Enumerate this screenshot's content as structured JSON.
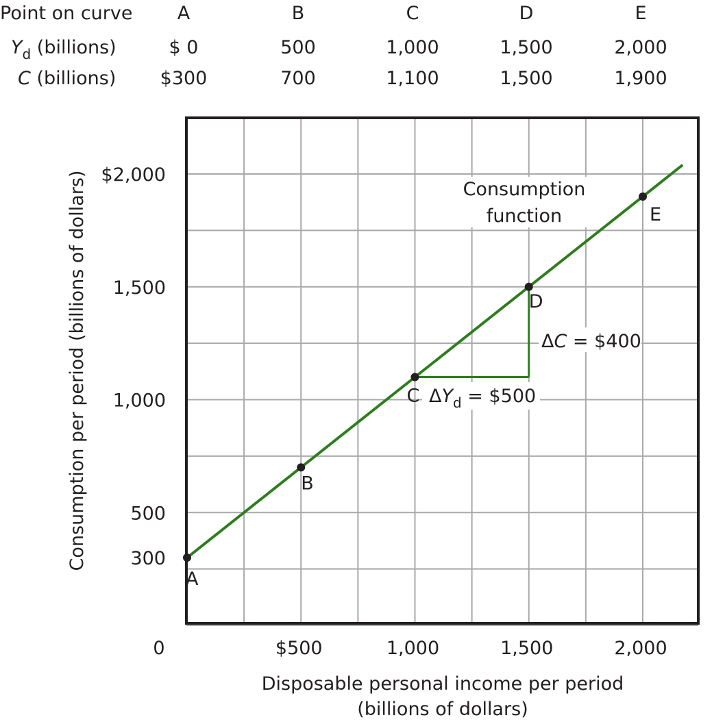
{
  "table": {
    "rows": [
      {
        "label_main": "Point on curve",
        "label_sub": "",
        "label_rest": "",
        "cells": [
          "A",
          "B",
          "C",
          "D",
          "E"
        ]
      },
      {
        "label_main": "Y",
        "label_sub": "d",
        "label_rest": " (billions)",
        "cells": [
          "$  0",
          "500",
          "1,000",
          "1,500",
          "2,000"
        ]
      },
      {
        "label_main": "C",
        "label_sub": "",
        "label_rest": " (billions)",
        "cells": [
          "$300",
          "700",
          "1,100",
          "1,500",
          "1,900"
        ]
      }
    ]
  },
  "chart_data": {
    "type": "line",
    "xlabel_line1": "Disposable personal income per period",
    "xlabel_line2": "(billions of dollars)",
    "ylabel": "Consumption per period (billions of dollars)",
    "xlim": [
      -100,
      2200
    ],
    "ylim": [
      -200,
      2200
    ],
    "x_grid": [
      0,
      250,
      500,
      750,
      1000,
      1250,
      1500,
      1750,
      2000
    ],
    "y_grid": [
      0,
      250,
      500,
      750,
      1000,
      1250,
      1500,
      1750,
      2000
    ],
    "grid": true,
    "x_ticks": [
      {
        "value": 0,
        "label": "0"
      },
      {
        "value": 500,
        "label": "$500"
      },
      {
        "value": 1000,
        "label": "1,000"
      },
      {
        "value": 1500,
        "label": "1,500"
      },
      {
        "value": 2000,
        "label": "2,000"
      }
    ],
    "y_ticks": [
      {
        "value": 300,
        "label": "300"
      },
      {
        "value": 500,
        "label": "500"
      },
      {
        "value": 1000,
        "label": "1,000"
      },
      {
        "value": 1500,
        "label": "1,500"
      },
      {
        "value": 2000,
        "label": "$2,000"
      }
    ],
    "series": [
      {
        "name": "Consumption function",
        "name_line1": "Consumption",
        "name_line2": "function",
        "color": "#2e7d1e",
        "line_x": [
          0,
          2175
        ],
        "line_y": [
          300,
          2040
        ]
      }
    ],
    "points": [
      {
        "label": "A",
        "x": 0,
        "y": 300
      },
      {
        "label": "B",
        "x": 500,
        "y": 700
      },
      {
        "label": "C",
        "x": 1000,
        "y": 1100
      },
      {
        "label": "D",
        "x": 1500,
        "y": 1500
      },
      {
        "label": "E",
        "x": 2000,
        "y": 1900
      }
    ],
    "annotations": {
      "delta_yd": {
        "delta": "Δ",
        "var": "Y",
        "sub": "d",
        "rest": " = $500"
      },
      "delta_c": {
        "delta": "Δ",
        "var": "C",
        "rest": " = $400"
      }
    },
    "colors": {
      "line": "#2e7d1e",
      "grid": "#a7a9ac",
      "frame": "#231f20",
      "point": "#231f20"
    }
  }
}
